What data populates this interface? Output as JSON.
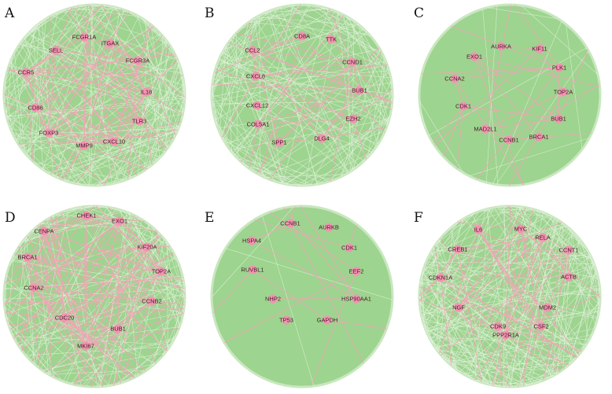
{
  "colors": {
    "network_fill": "#9dd48f",
    "rim_edge": "#c9e7bf",
    "green_edge": "#e2f1dc",
    "pink_edge": "#f4a3b8",
    "node": "#f294b0",
    "label": "#4a1a2e"
  },
  "panels": [
    {
      "letter": "A",
      "nodes": [
        {
          "label": "FCGR1A"
        },
        {
          "label": "ITGAX"
        },
        {
          "label": "SELL"
        },
        {
          "label": "FCGR3A"
        },
        {
          "label": "CCR5"
        },
        {
          "label": "IL18"
        },
        {
          "label": "CD86"
        },
        {
          "label": "TLR3"
        },
        {
          "label": "FOXP3"
        },
        {
          "label": "CXCL10"
        },
        {
          "label": "MMP9"
        }
      ]
    },
    {
      "letter": "B",
      "nodes": [
        {
          "label": "CD8A"
        },
        {
          "label": "TTK"
        },
        {
          "label": "CCL2"
        },
        {
          "label": "CCND1"
        },
        {
          "label": "CXCL8"
        },
        {
          "label": "BUB1"
        },
        {
          "label": "CXCL12"
        },
        {
          "label": "COL5A1"
        },
        {
          "label": "EZH2"
        },
        {
          "label": "SPP1"
        },
        {
          "label": "DLG4"
        }
      ]
    },
    {
      "letter": "C",
      "nodes": [
        {
          "label": "AURKA"
        },
        {
          "label": "KIF11"
        },
        {
          "label": "EXO1"
        },
        {
          "label": "PLK1"
        },
        {
          "label": "CCNA2"
        },
        {
          "label": "TOP2A"
        },
        {
          "label": "CDK1"
        },
        {
          "label": "BUB1"
        },
        {
          "label": "MAD2L1"
        },
        {
          "label": "BRCA1"
        },
        {
          "label": "CCNB1"
        }
      ]
    },
    {
      "letter": "D",
      "nodes": [
        {
          "label": "CHEK1"
        },
        {
          "label": "EXO1"
        },
        {
          "label": "CENPA"
        },
        {
          "label": "KIF20A"
        },
        {
          "label": "BRCA1"
        },
        {
          "label": "TOP2A"
        },
        {
          "label": "CCNA2"
        },
        {
          "label": "CCNB2"
        },
        {
          "label": "CDC20"
        },
        {
          "label": "BUB1"
        },
        {
          "label": "MKI67"
        }
      ]
    },
    {
      "letter": "E",
      "nodes": [
        {
          "label": "CCNB1"
        },
        {
          "label": "AURKB"
        },
        {
          "label": "HSPA4"
        },
        {
          "label": "CDK1"
        },
        {
          "label": "RUVBL1"
        },
        {
          "label": "EEF2"
        },
        {
          "label": "NHP2"
        },
        {
          "label": "HSP90AA1"
        },
        {
          "label": "TP53"
        },
        {
          "label": "GAPDH"
        }
      ]
    },
    {
      "letter": "F",
      "nodes": [
        {
          "label": "IL6"
        },
        {
          "label": "MYC"
        },
        {
          "label": "RELA"
        },
        {
          "label": "CREB1"
        },
        {
          "label": "CCNT1"
        },
        {
          "label": "CDKN1A"
        },
        {
          "label": "ACTB"
        },
        {
          "label": "NGF"
        },
        {
          "label": "MDM2"
        },
        {
          "label": "CDK9"
        },
        {
          "label": "CSF2"
        },
        {
          "label": "PPP2R1A"
        }
      ]
    }
  ]
}
